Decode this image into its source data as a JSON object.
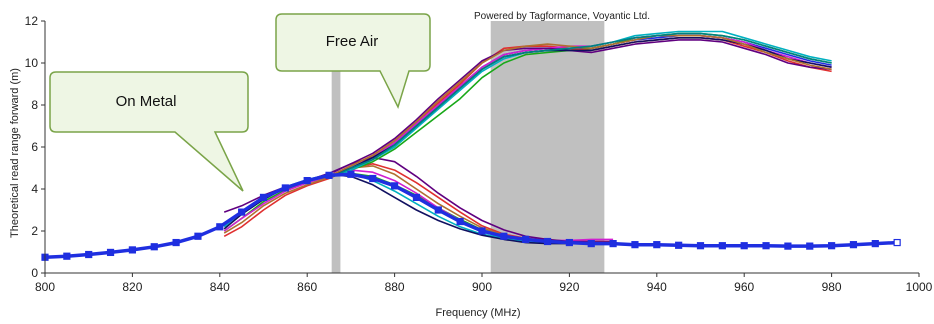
{
  "chart_data": {
    "type": "line",
    "credit": "Powered by Tagformance, Voyantic Ltd.",
    "xlabel": "Frequency (MHz)",
    "ylabel": "Theoretical read range forward (m)",
    "xlim": [
      800,
      1000
    ],
    "ylim": [
      0,
      12
    ],
    "xticks": [
      800,
      820,
      840,
      860,
      880,
      900,
      920,
      940,
      960,
      980,
      1000
    ],
    "yticks": [
      0,
      2,
      4,
      6,
      8,
      10,
      12
    ],
    "grid": false,
    "shaded_bands": [
      {
        "from": 865.6,
        "to": 867.6,
        "color": "#c0c0c0"
      },
      {
        "from": 902,
        "to": 928,
        "color": "#c0c0c0"
      }
    ],
    "annotations": [
      {
        "text": "On Metal",
        "point_at": [
          845,
          4
        ]
      },
      {
        "text": "Free Air",
        "point_at": [
          880,
          8
        ]
      }
    ],
    "series": [
      {
        "color": "#1f2fe0",
        "width": 3.5,
        "marker": "square",
        "x": [
          800,
          805,
          810,
          815,
          820,
          825,
          830,
          835,
          840,
          845,
          850,
          855,
          860,
          865,
          870,
          875,
          880,
          885,
          890,
          895,
          900,
          905,
          910,
          915,
          920,
          925,
          930,
          935,
          940,
          945,
          950,
          955,
          960,
          965,
          970,
          975,
          980,
          985,
          990,
          995
        ],
        "y": [
          0.75,
          0.8,
          0.88,
          0.98,
          1.1,
          1.25,
          1.45,
          1.75,
          2.2,
          2.9,
          3.6,
          4.05,
          4.4,
          4.65,
          4.7,
          4.5,
          4.15,
          3.6,
          3.0,
          2.45,
          2.0,
          1.75,
          1.6,
          1.5,
          1.45,
          1.4,
          1.4,
          1.35,
          1.35,
          1.32,
          1.3,
          1.3,
          1.3,
          1.3,
          1.28,
          1.28,
          1.3,
          1.35,
          1.4,
          1.45
        ]
      },
      {
        "color": "#18a818",
        "x": [
          841,
          845,
          850,
          855,
          860,
          865,
          870,
          875,
          880,
          885,
          890,
          895,
          900,
          905,
          910,
          915,
          920,
          925,
          930
        ],
        "y": [
          2.0,
          2.6,
          3.4,
          3.95,
          4.3,
          4.6,
          4.75,
          4.6,
          4.2,
          3.7,
          3.1,
          2.55,
          2.05,
          1.8,
          1.6,
          1.5,
          1.45,
          1.45,
          1.45
        ]
      },
      {
        "color": "#e03030",
        "x": [
          841,
          845,
          850,
          855,
          860,
          865,
          870,
          875,
          880,
          885,
          890,
          895,
          900,
          905,
          910,
          915,
          920,
          925,
          930
        ],
        "y": [
          1.75,
          2.2,
          3.0,
          3.7,
          4.15,
          4.5,
          5.0,
          5.2,
          4.9,
          4.3,
          3.6,
          2.9,
          2.25,
          1.85,
          1.65,
          1.55,
          1.5,
          1.5,
          1.5
        ]
      },
      {
        "color": "#d020d0",
        "x": [
          841,
          845,
          850,
          855,
          860,
          865,
          870,
          875,
          880,
          885,
          890,
          895,
          900,
          905,
          910,
          915,
          920,
          925,
          930
        ],
        "y": [
          2.0,
          2.6,
          3.3,
          3.9,
          4.3,
          4.6,
          4.9,
          4.8,
          4.4,
          3.8,
          3.1,
          2.5,
          2.0,
          1.75,
          1.6,
          1.55,
          1.55,
          1.6,
          1.6
        ]
      },
      {
        "color": "#00b0c0",
        "x": [
          841,
          845,
          850,
          855,
          860,
          865,
          870,
          875,
          880,
          885,
          890,
          895,
          900,
          905,
          910,
          915,
          920,
          925,
          930
        ],
        "y": [
          2.2,
          2.9,
          3.6,
          4.1,
          4.45,
          4.7,
          4.75,
          4.4,
          3.9,
          3.3,
          2.7,
          2.2,
          1.85,
          1.65,
          1.5,
          1.45,
          1.45,
          1.45,
          1.45
        ]
      },
      {
        "color": "#600080",
        "x": [
          841,
          845,
          850,
          855,
          860,
          865,
          870,
          875,
          880,
          885,
          890,
          895,
          900,
          905,
          910,
          915,
          920,
          925,
          930
        ],
        "y": [
          2.9,
          3.2,
          3.7,
          4.1,
          4.4,
          4.75,
          5.2,
          5.5,
          5.3,
          4.6,
          3.8,
          3.1,
          2.5,
          2.05,
          1.75,
          1.6,
          1.5,
          1.5,
          1.5
        ]
      },
      {
        "color": "#101060",
        "x": [
          841,
          845,
          850,
          855,
          860,
          865,
          870,
          875,
          880,
          885,
          890,
          895,
          900,
          905,
          910,
          915,
          920,
          925,
          930
        ],
        "y": [
          2.1,
          2.8,
          3.5,
          4.05,
          4.4,
          4.7,
          4.6,
          4.2,
          3.6,
          3.0,
          2.5,
          2.1,
          1.8,
          1.6,
          1.45,
          1.4,
          1.4,
          1.4,
          1.4
        ]
      },
      {
        "color": "#b07030",
        "x": [
          841,
          845,
          850,
          855,
          860,
          865,
          870,
          875,
          880,
          885,
          890,
          895,
          900,
          905,
          910,
          915,
          920,
          925,
          930
        ],
        "y": [
          1.9,
          2.4,
          3.2,
          3.8,
          4.2,
          4.55,
          5.0,
          5.1,
          4.7,
          4.0,
          3.3,
          2.7,
          2.15,
          1.8,
          1.6,
          1.5,
          1.45,
          1.45,
          1.45
        ]
      },
      {
        "color": "#1f2fe0",
        "x": [
          866,
          870,
          875,
          880,
          885,
          890,
          895,
          900,
          905,
          910,
          915,
          920,
          925,
          930,
          935,
          940,
          945,
          950,
          955,
          960,
          965,
          970,
          975,
          980
        ],
        "y": [
          4.7,
          5.0,
          5.5,
          6.2,
          7.1,
          8.0,
          8.9,
          9.8,
          10.4,
          10.6,
          10.7,
          10.7,
          10.7,
          10.9,
          11.1,
          11.2,
          11.3,
          11.3,
          11.2,
          11.0,
          10.7,
          10.4,
          10.1,
          9.9
        ]
      },
      {
        "color": "#18a818",
        "x": [
          866,
          870,
          875,
          880,
          885,
          890,
          895,
          900,
          905,
          910,
          915,
          920,
          925,
          930,
          935,
          940,
          945,
          950,
          955,
          960,
          965,
          970,
          975,
          980
        ],
        "y": [
          4.6,
          4.9,
          5.3,
          5.9,
          6.7,
          7.5,
          8.3,
          9.3,
          10.0,
          10.4,
          10.5,
          10.6,
          10.7,
          10.9,
          11.2,
          11.3,
          11.4,
          11.4,
          11.3,
          11.1,
          10.8,
          10.5,
          10.2,
          10.0
        ]
      },
      {
        "color": "#e03030",
        "x": [
          866,
          870,
          875,
          880,
          885,
          890,
          895,
          900,
          905,
          910,
          915,
          920,
          925,
          930,
          935,
          940,
          945,
          950,
          955,
          960,
          965,
          970,
          975,
          980
        ],
        "y": [
          4.7,
          5.1,
          5.6,
          6.3,
          7.2,
          8.1,
          9.0,
          10.0,
          10.7,
          10.8,
          10.8,
          10.7,
          10.6,
          10.8,
          11.0,
          11.1,
          11.2,
          11.2,
          11.1,
          10.8,
          10.5,
          10.1,
          9.8,
          9.6
        ]
      },
      {
        "color": "#d020d0",
        "x": [
          866,
          870,
          875,
          880,
          885,
          890,
          895,
          900,
          905,
          910,
          915,
          920,
          925,
          930,
          935,
          940,
          945,
          950,
          955,
          960,
          965,
          970,
          975,
          980
        ],
        "y": [
          4.7,
          5.0,
          5.5,
          6.2,
          7.1,
          8.0,
          8.9,
          9.8,
          10.4,
          10.6,
          10.7,
          10.8,
          10.8,
          11.0,
          11.2,
          11.3,
          11.3,
          11.3,
          11.2,
          11.0,
          10.6,
          10.3,
          10.0,
          9.8
        ]
      },
      {
        "color": "#00b0c0",
        "x": [
          866,
          870,
          875,
          880,
          885,
          890,
          895,
          900,
          905,
          910,
          915,
          920,
          925,
          930,
          935,
          940,
          945,
          950,
          955,
          960,
          965,
          970,
          975,
          980
        ],
        "y": [
          4.6,
          4.9,
          5.4,
          6.0,
          6.9,
          7.8,
          8.7,
          9.6,
          10.2,
          10.5,
          10.6,
          10.7,
          10.8,
          11.0,
          11.3,
          11.4,
          11.5,
          11.5,
          11.5,
          11.2,
          10.9,
          10.6,
          10.3,
          10.1
        ]
      },
      {
        "color": "#600080",
        "x": [
          866,
          870,
          875,
          880,
          885,
          890,
          895,
          900,
          905,
          910,
          915,
          920,
          925,
          930,
          935,
          940,
          945,
          950,
          955,
          960,
          965,
          970,
          975,
          980
        ],
        "y": [
          4.8,
          5.2,
          5.7,
          6.4,
          7.3,
          8.3,
          9.2,
          10.1,
          10.6,
          10.7,
          10.7,
          10.6,
          10.5,
          10.7,
          10.9,
          11.0,
          11.1,
          11.1,
          11.0,
          10.7,
          10.4,
          10.0,
          9.8,
          9.7
        ]
      },
      {
        "color": "#101060",
        "x": [
          866,
          870,
          875,
          880,
          885,
          890,
          895,
          900,
          905,
          910,
          915,
          920,
          925,
          930,
          935,
          940,
          945,
          950,
          955,
          960,
          965,
          970,
          975,
          980
        ],
        "y": [
          4.7,
          5.0,
          5.5,
          6.1,
          7.0,
          7.9,
          8.8,
          9.7,
          10.3,
          10.5,
          10.6,
          10.6,
          10.6,
          10.8,
          11.0,
          11.1,
          11.2,
          11.2,
          11.1,
          10.9,
          10.6,
          10.2,
          10.0,
          9.8
        ]
      },
      {
        "color": "#b07030",
        "x": [
          866,
          870,
          875,
          880,
          885,
          890,
          895,
          900,
          905,
          910,
          915,
          920,
          925,
          930,
          935,
          940,
          945,
          950,
          955,
          960,
          965,
          970,
          975,
          980
        ],
        "y": [
          4.7,
          5.1,
          5.6,
          6.3,
          7.2,
          8.2,
          9.1,
          10.0,
          10.6,
          10.8,
          10.9,
          10.8,
          10.7,
          10.9,
          11.1,
          11.3,
          11.3,
          11.3,
          11.2,
          10.9,
          10.5,
          10.2,
          9.9,
          9.7
        ]
      },
      {
        "color": "#008080",
        "x": [
          866,
          870,
          875,
          880,
          885,
          890,
          895,
          900,
          905,
          910,
          915,
          920,
          925,
          930,
          935,
          940,
          945,
          950,
          955,
          960,
          965,
          970,
          975,
          980
        ],
        "y": [
          4.6,
          5.0,
          5.4,
          6.1,
          7.0,
          7.9,
          8.8,
          9.7,
          10.3,
          10.5,
          10.6,
          10.7,
          10.8,
          11.0,
          11.2,
          11.3,
          11.4,
          11.4,
          11.3,
          11.1,
          10.8,
          10.5,
          10.2,
          10.0
        ]
      }
    ]
  }
}
